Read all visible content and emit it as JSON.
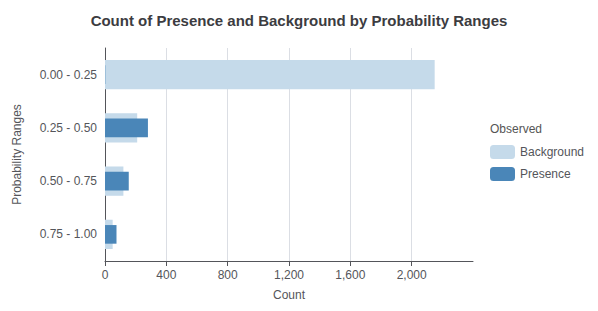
{
  "chart_data": {
    "type": "bar",
    "orientation": "horizontal",
    "title": "Count of Presence and Background by Probability Ranges",
    "xlabel": "Count",
    "ylabel": "Probability Ranges",
    "legend_title": "Observed",
    "categories": [
      "0.00 - 0.25",
      "0.25 - 0.50",
      "0.50 - 0.75",
      "0.75 - 1.00"
    ],
    "series": [
      {
        "name": "Background",
        "color": "#c5daea",
        "values": [
          2150,
          210,
          120,
          50
        ]
      },
      {
        "name": "Presence",
        "color": "#4a86b8",
        "values": [
          2,
          280,
          155,
          75
        ]
      }
    ],
    "xlim": [
      0,
      2400
    ],
    "xticks": [
      0,
      400,
      800,
      {
        "value": 1200,
        "label": "1,200"
      },
      {
        "value": 1600,
        "label": "1,600"
      },
      {
        "value": 2000,
        "label": "2,000"
      }
    ],
    "grid": true,
    "legend": "right"
  }
}
